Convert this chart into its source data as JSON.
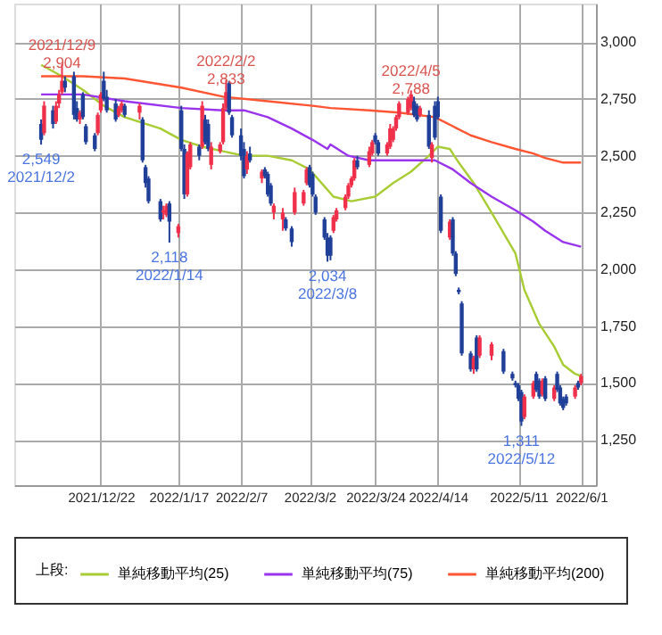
{
  "chart_data": {
    "type": "candlestick",
    "x": [
      "2021-12-02",
      "2021-12-03",
      "2021-12-06",
      "2021-12-07",
      "2021-12-08",
      "2021-12-09",
      "2021-12-10",
      "2021-12-13",
      "2021-12-14",
      "2021-12-15",
      "2021-12-16",
      "2021-12-17",
      "2021-12-20",
      "2021-12-21",
      "2021-12-22",
      "2021-12-23",
      "2021-12-24",
      "2021-12-27",
      "2021-12-28",
      "2021-12-29",
      "2021-12-30",
      "2022-01-04",
      "2022-01-05",
      "2022-01-06",
      "2022-01-07",
      "2022-01-11",
      "2022-01-12",
      "2022-01-13",
      "2022-01-14",
      "2022-01-17",
      "2022-01-18",
      "2022-01-19",
      "2022-01-20",
      "2022-01-21",
      "2022-01-24",
      "2022-01-25",
      "2022-01-26",
      "2022-01-27",
      "2022-01-28",
      "2022-01-31",
      "2022-02-01",
      "2022-02-02",
      "2022-02-03",
      "2022-02-04",
      "2022-02-07",
      "2022-02-08",
      "2022-02-09",
      "2022-02-10",
      "2022-02-14",
      "2022-02-15",
      "2022-02-16",
      "2022-02-17",
      "2022-02-18",
      "2022-02-21",
      "2022-02-22",
      "2022-02-24",
      "2022-02-25",
      "2022-02-28",
      "2022-03-01",
      "2022-03-02",
      "2022-03-03",
      "2022-03-04",
      "2022-03-07",
      "2022-03-08",
      "2022-03-09",
      "2022-03-10",
      "2022-03-11",
      "2022-03-14",
      "2022-03-15",
      "2022-03-16",
      "2022-03-17",
      "2022-03-18",
      "2022-03-22",
      "2022-03-23",
      "2022-03-24",
      "2022-03-25",
      "2022-03-28",
      "2022-03-29",
      "2022-03-30",
      "2022-03-31",
      "2022-04-01",
      "2022-04-04",
      "2022-04-05",
      "2022-04-06",
      "2022-04-07",
      "2022-04-08",
      "2022-04-11",
      "2022-04-12",
      "2022-04-13",
      "2022-04-14",
      "2022-04-15",
      "2022-04-18",
      "2022-04-19",
      "2022-04-20",
      "2022-04-21",
      "2022-04-22",
      "2022-04-25",
      "2022-04-26",
      "2022-04-27",
      "2022-04-28",
      "2022-05-02",
      "2022-05-06",
      "2022-05-09",
      "2022-05-10",
      "2022-05-11",
      "2022-05-12",
      "2022-05-13",
      "2022-05-16",
      "2022-05-17",
      "2022-05-18",
      "2022-05-19",
      "2022-05-20",
      "2022-05-23",
      "2022-05-24",
      "2022-05-25",
      "2022-05-26",
      "2022-05-27",
      "2022-05-30",
      "2022-05-31",
      "2022-06-01"
    ],
    "ohlc": [
      [
        2640,
        2660,
        2549,
        2570
      ],
      [
        2600,
        2740,
        2590,
        2720
      ],
      [
        2700,
        2720,
        2620,
        2640
      ],
      [
        2650,
        2740,
        2640,
        2720
      ],
      [
        2730,
        2790,
        2710,
        2770
      ],
      [
        2780,
        2904,
        2770,
        2830
      ],
      [
        2830,
        2850,
        2780,
        2800
      ],
      [
        2850,
        2870,
        2660,
        2680
      ],
      [
        2710,
        2740,
        2650,
        2660
      ],
      [
        2660,
        2700,
        2640,
        2690
      ],
      [
        2770,
        2780,
        2660,
        2670
      ],
      [
        2630,
        2640,
        2550,
        2560
      ],
      [
        2590,
        2600,
        2520,
        2530
      ],
      [
        2600,
        2690,
        2590,
        2680
      ],
      [
        2700,
        2780,
        2690,
        2770
      ],
      [
        2830,
        2870,
        2740,
        2750
      ],
      [
        2760,
        2790,
        2690,
        2700
      ],
      [
        2730,
        2750,
        2650,
        2660
      ],
      [
        2680,
        2720,
        2670,
        2710
      ],
      [
        2700,
        2740,
        2690,
        2730
      ],
      [
        2720,
        2730,
        2670,
        2680
      ],
      [
        2690,
        2730,
        2660,
        2720
      ],
      [
        2660,
        2670,
        2470,
        2480
      ],
      [
        2450,
        2460,
        2360,
        2380
      ],
      [
        2400,
        2410,
        2290,
        2300
      ],
      [
        2300,
        2310,
        2210,
        2220
      ],
      [
        2260,
        2280,
        2220,
        2250
      ],
      [
        2240,
        2290,
        2230,
        2280
      ],
      [
        2290,
        2300,
        2118,
        2210
      ],
      [
        2160,
        2200,
        2140,
        2190
      ],
      [
        2700,
        2720,
        2520,
        2530
      ],
      [
        2530,
        2550,
        2310,
        2330
      ],
      [
        2330,
        2520,
        2320,
        2510
      ],
      [
        2450,
        2560,
        2440,
        2550
      ],
      [
        2540,
        2550,
        2480,
        2500
      ],
      [
        2540,
        2740,
        2530,
        2720
      ],
      [
        2660,
        2680,
        2550,
        2560
      ],
      [
        2640,
        2660,
        2520,
        2530
      ],
      [
        2460,
        2560,
        2440,
        2540
      ],
      [
        2520,
        2560,
        2510,
        2550
      ],
      [
        2560,
        2730,
        2550,
        2710
      ],
      [
        2710,
        2833,
        2700,
        2780
      ],
      [
        2820,
        2830,
        2680,
        2690
      ],
      [
        2670,
        2680,
        2580,
        2590
      ],
      [
        2590,
        2620,
        2480,
        2500
      ],
      [
        2530,
        2560,
        2400,
        2410
      ],
      [
        2440,
        2520,
        2420,
        2500
      ],
      [
        2510,
        2540,
        2470,
        2480
      ],
      [
        2400,
        2440,
        2380,
        2430
      ],
      [
        2440,
        2450,
        2400,
        2410
      ],
      [
        2420,
        2430,
        2320,
        2330
      ],
      [
        2370,
        2380,
        2280,
        2290
      ],
      [
        2250,
        2290,
        2220,
        2280
      ],
      [
        2220,
        2270,
        2170,
        2250
      ],
      [
        2220,
        2230,
        2170,
        2180
      ],
      [
        2180,
        2190,
        2100,
        2120
      ],
      [
        2250,
        2360,
        2240,
        2340
      ],
      [
        2290,
        2350,
        2280,
        2340
      ],
      [
        2380,
        2450,
        2370,
        2440
      ],
      [
        2450,
        2460,
        2360,
        2370
      ],
      [
        2420,
        2430,
        2320,
        2330
      ],
      [
        2320,
        2330,
        2240,
        2250
      ],
      [
        2220,
        2230,
        2130,
        2140
      ],
      [
        2140,
        2160,
        2034,
        2060
      ],
      [
        2140,
        2150,
        2040,
        2060
      ],
      [
        2170,
        2240,
        2160,
        2230
      ],
      [
        2220,
        2270,
        2210,
        2260
      ],
      [
        2270,
        2330,
        2260,
        2320
      ],
      [
        2320,
        2380,
        2310,
        2370
      ],
      [
        2370,
        2410,
        2360,
        2400
      ],
      [
        2400,
        2490,
        2390,
        2480
      ],
      [
        2480,
        2500,
        2440,
        2450
      ],
      [
        2460,
        2540,
        2450,
        2520
      ],
      [
        2510,
        2570,
        2500,
        2560
      ],
      [
        2590,
        2600,
        2550,
        2560
      ],
      [
        2560,
        2570,
        2500,
        2510
      ],
      [
        2510,
        2560,
        2500,
        2550
      ],
      [
        2540,
        2640,
        2530,
        2620
      ],
      [
        2570,
        2630,
        2560,
        2620
      ],
      [
        2620,
        2680,
        2610,
        2670
      ],
      [
        2670,
        2740,
        2660,
        2730
      ],
      [
        2690,
        2760,
        2680,
        2750
      ],
      [
        2710,
        2788,
        2700,
        2770
      ],
      [
        2740,
        2760,
        2670,
        2680
      ],
      [
        2720,
        2730,
        2650,
        2660
      ],
      [
        2680,
        2720,
        2670,
        2710
      ],
      [
        2680,
        2700,
        2530,
        2540
      ],
      [
        2490,
        2560,
        2470,
        2550
      ],
      [
        2720,
        2740,
        2570,
        2580
      ],
      [
        2740,
        2760,
        2660,
        2670
      ],
      [
        2320,
        2330,
        2160,
        2170
      ],
      [
        2140,
        2220,
        2130,
        2210
      ],
      [
        2220,
        2230,
        2060,
        2070
      ],
      [
        2070,
        2080,
        1970,
        1980
      ],
      [
        1910,
        1920,
        1890,
        1900
      ],
      [
        1850,
        1860,
        1620,
        1630
      ],
      [
        1630,
        1640,
        1550,
        1560
      ],
      [
        1560,
        1620,
        1540,
        1610
      ],
      [
        1700,
        1710,
        1550,
        1560
      ],
      [
        1620,
        1710,
        1610,
        1700
      ],
      [
        1620,
        1680,
        1600,
        1670
      ],
      [
        1640,
        1650,
        1540,
        1550
      ],
      [
        1540,
        1550,
        1510,
        1520
      ],
      [
        1500,
        1510,
        1480,
        1490
      ],
      [
        1490,
        1500,
        1420,
        1430
      ],
      [
        1460,
        1470,
        1311,
        1330
      ],
      [
        1350,
        1450,
        1340,
        1440
      ],
      [
        1440,
        1510,
        1430,
        1500
      ],
      [
        1540,
        1550,
        1460,
        1470
      ],
      [
        1510,
        1520,
        1430,
        1440
      ],
      [
        1450,
        1520,
        1440,
        1510
      ],
      [
        1520,
        1530,
        1420,
        1430
      ],
      [
        1430,
        1490,
        1420,
        1480
      ],
      [
        1540,
        1550,
        1460,
        1470
      ],
      [
        1480,
        1490,
        1400,
        1410
      ],
      [
        1430,
        1440,
        1380,
        1390
      ],
      [
        1440,
        1450,
        1400,
        1410
      ],
      [
        1440,
        1490,
        1430,
        1480
      ],
      [
        1500,
        1510,
        1470,
        1480
      ],
      [
        1500,
        1540,
        1490,
        1530
      ]
    ],
    "colors": [
      "#1f3f99",
      "#f0304a",
      "#1f3f99",
      "#f0304a",
      "#f0304a",
      "#f0304a",
      "#1f3f99",
      "#1f3f99",
      "#1f3f99",
      "#f0304a",
      "#1f3f99",
      "#1f3f99",
      "#1f3f99",
      "#f0304a",
      "#f0304a",
      "#1f3f99",
      "#1f3f99",
      "#1f3f99",
      "#f0304a",
      "#f0304a",
      "#1f3f99",
      "#f0304a",
      "#1f3f99",
      "#1f3f99",
      "#1f3f99",
      "#1f3f99",
      "#f0304a",
      "#f0304a",
      "#1f3f99",
      "#f0304a",
      "#1f3f99",
      "#1f3f99",
      "#f0304a",
      "#f0304a",
      "#1f3f99",
      "#f0304a",
      "#1f3f99",
      "#1f3f99",
      "#f0304a",
      "#f0304a",
      "#f0304a",
      "#f0304a",
      "#1f3f99",
      "#1f3f99",
      "#1f3f99",
      "#1f3f99",
      "#f0304a",
      "#1f3f99",
      "#f0304a",
      "#1f3f99",
      "#1f3f99",
      "#1f3f99",
      "#f0304a",
      "#f0304a",
      "#1f3f99",
      "#1f3f99",
      "#f0304a",
      "#f0304a",
      "#f0304a",
      "#1f3f99",
      "#1f3f99",
      "#1f3f99",
      "#1f3f99",
      "#1f3f99",
      "#1f3f99",
      "#f0304a",
      "#f0304a",
      "#f0304a",
      "#f0304a",
      "#f0304a",
      "#f0304a",
      "#1f3f99",
      "#f0304a",
      "#f0304a",
      "#1f3f99",
      "#1f3f99",
      "#f0304a",
      "#f0304a",
      "#f0304a",
      "#f0304a",
      "#f0304a",
      "#f0304a",
      "#f0304a",
      "#1f3f99",
      "#1f3f99",
      "#f0304a",
      "#1f3f99",
      "#f0304a",
      "#1f3f99",
      "#1f3f99",
      "#1f3f99",
      "#f0304a",
      "#1f3f99",
      "#1f3f99",
      "#1f3f99",
      "#1f3f99",
      "#1f3f99",
      "#f0304a",
      "#1f3f99",
      "#f0304a",
      "#f0304a",
      "#1f3f99",
      "#1f3f99",
      "#1f3f99",
      "#1f3f99",
      "#1f3f99",
      "#f0304a",
      "#f0304a",
      "#1f3f99",
      "#1f3f99",
      "#f0304a",
      "#1f3f99",
      "#f0304a",
      "#1f3f99",
      "#1f3f99",
      "#1f3f99",
      "#1f3f99",
      "#f0304a",
      "#1f3f99",
      "#f0304a"
    ],
    "xlim": [
      "2021-11-23",
      "2022-06-06"
    ],
    "series": [
      {
        "name": "単純移動平均(25)",
        "color": "#a8cc33",
        "type": "line",
        "x": [
          "2021-12-02",
          "2021-12-09",
          "2021-12-16",
          "2021-12-23",
          "2021-12-30",
          "2022-01-11",
          "2022-01-18",
          "2022-01-25",
          "2022-02-01",
          "2022-02-08",
          "2022-02-16",
          "2022-02-24",
          "2022-03-02",
          "2022-03-08",
          "2022-03-10",
          "2022-03-16",
          "2022-03-24",
          "2022-03-30",
          "2022-04-05",
          "2022-04-11",
          "2022-04-14",
          "2022-04-18",
          "2022-04-21",
          "2022-04-26",
          "2022-05-02",
          "2022-05-10",
          "2022-05-13",
          "2022-05-18",
          "2022-05-23",
          "2022-05-26",
          "2022-05-30",
          "2022-06-01"
        ],
        "values": [
          2900,
          2850,
          2790,
          2720,
          2670,
          2620,
          2570,
          2540,
          2520,
          2500,
          2500,
          2480,
          2440,
          2350,
          2320,
          2300,
          2320,
          2380,
          2430,
          2500,
          2540,
          2530,
          2470,
          2380,
          2250,
          2070,
          1910,
          1760,
          1660,
          1580,
          1540,
          1530
        ]
      },
      {
        "name": "単純移動平均(75)",
        "color": "#9933ee",
        "type": "line",
        "x": [
          "2021-12-02",
          "2021-12-16",
          "2021-12-30",
          "2022-01-18",
          "2022-02-01",
          "2022-02-08",
          "2022-02-16",
          "2022-02-24",
          "2022-03-03",
          "2022-03-08",
          "2022-03-09",
          "2022-03-15",
          "2022-03-22",
          "2022-04-01",
          "2022-04-13",
          "2022-04-19",
          "2022-04-25",
          "2022-05-02",
          "2022-05-10",
          "2022-05-16",
          "2022-05-20",
          "2022-05-26",
          "2022-06-01"
        ],
        "values": [
          2770,
          2770,
          2740,
          2710,
          2700,
          2700,
          2670,
          2620,
          2570,
          2530,
          2550,
          2500,
          2480,
          2480,
          2480,
          2440,
          2380,
          2320,
          2260,
          2210,
          2170,
          2120,
          2100
        ]
      },
      {
        "name": "単純移動平均(200)",
        "color": "#ff5533",
        "type": "line",
        "x": [
          "2021-12-02",
          "2021-12-16",
          "2021-12-30",
          "2022-01-18",
          "2022-02-01",
          "2022-02-16",
          "2022-03-03",
          "2022-03-09",
          "2022-03-22",
          "2022-04-01",
          "2022-04-13",
          "2022-04-19",
          "2022-04-25",
          "2022-05-02",
          "2022-05-10",
          "2022-05-16",
          "2022-05-20",
          "2022-05-26",
          "2022-06-01"
        ],
        "values": [
          2850,
          2850,
          2840,
          2800,
          2760,
          2740,
          2720,
          2710,
          2700,
          2690,
          2670,
          2630,
          2590,
          2560,
          2530,
          2510,
          2490,
          2470,
          2470
        ]
      }
    ],
    "ylim": [
      1050,
      3170
    ],
    "yticks": [
      {
        "value": 1250,
        "label": "1,250"
      },
      {
        "value": 1500,
        "label": "1,500"
      },
      {
        "value": 1750,
        "label": "1,750"
      },
      {
        "value": 2000,
        "label": "2,000"
      },
      {
        "value": 2250,
        "label": "2,250"
      },
      {
        "value": 2500,
        "label": "2,500"
      },
      {
        "value": 2750,
        "label": "2,750"
      },
      {
        "value": 3000,
        "label": "3,000"
      }
    ],
    "xticks": [
      {
        "value": "2021-12-22",
        "label": "2021/12/22"
      },
      {
        "value": "2022-01-17",
        "label": "2022/1/17"
      },
      {
        "value": "2022-02-07",
        "label": "2022/2/7"
      },
      {
        "value": "2022-03-02",
        "label": "2022/3/2"
      },
      {
        "value": "2022-03-24",
        "label": "2022/3/24"
      },
      {
        "value": "2022-04-14",
        "label": "2022/4/14"
      },
      {
        "value": "2022-05-11",
        "label": "2022/5/11"
      },
      {
        "value": "2022-06-01",
        "label": "2022/6/1"
      }
    ],
    "annotations": [
      {
        "text": "2021/12/9\n2,904",
        "x": "2021-12-09",
        "y": 2904
      },
      {
        "text": "2022/2/2\n2,833",
        "x": "2022-02-02",
        "y": 2833
      },
      {
        "text": "2022/4/5\n2,788",
        "x": "2022-04-05",
        "y": 2788
      },
      {
        "text": "2,549\n2021/12/2",
        "x": "2021-12-02",
        "y": 2549
      },
      {
        "text": "2,118\n2022/1/14",
        "x": "2022-01-14",
        "y": 2118
      },
      {
        "text": "2,034\n2022/3/8",
        "x": "2022-03-08",
        "y": 2034
      },
      {
        "text": "1,311\n2022/5/12",
        "x": "2022-05-12",
        "y": 1311
      }
    ],
    "legend_title": "上段:",
    "legend": "bottom",
    "grid": true
  }
}
